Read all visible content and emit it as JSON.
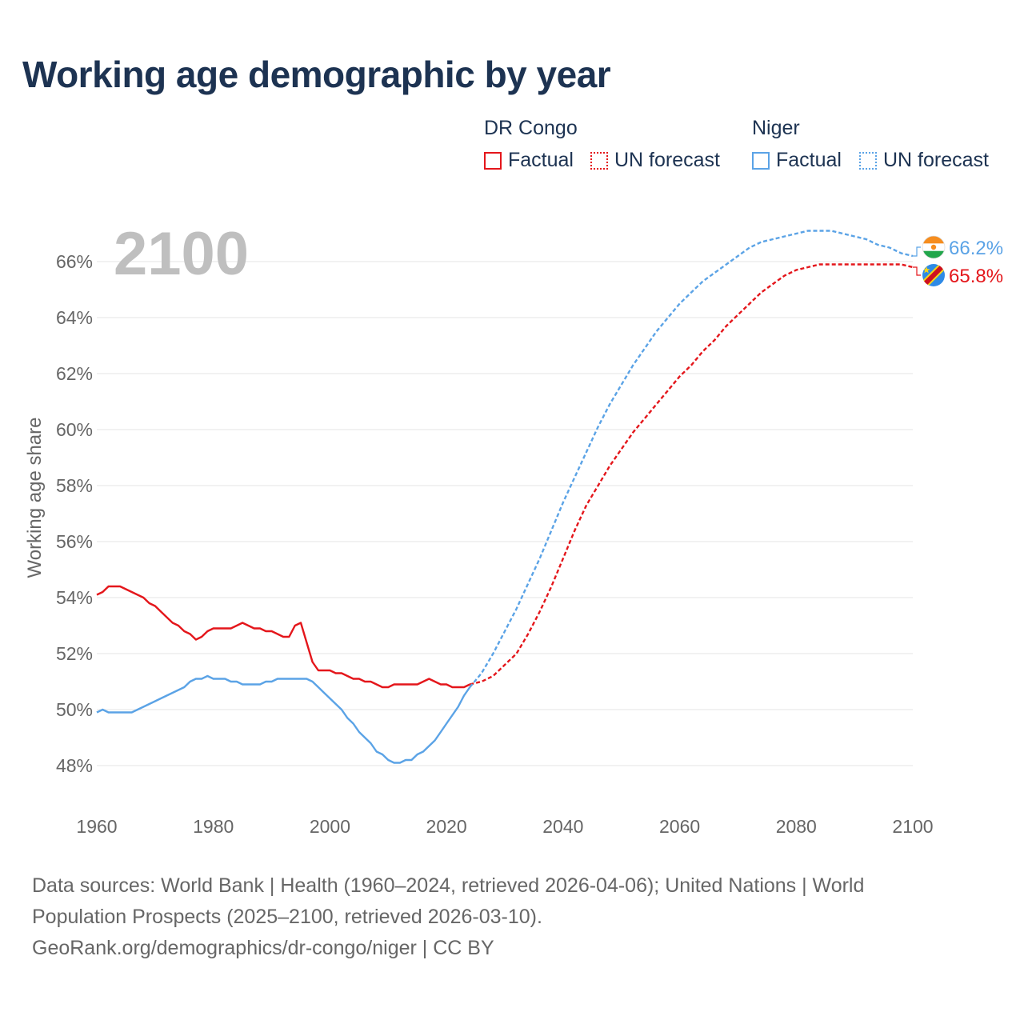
{
  "chart_data": {
    "type": "line",
    "title": "Working age demographic by year",
    "year_display": "2100",
    "ylabel": "Working age share",
    "xlabel": "",
    "xlim": [
      1960,
      2100
    ],
    "ylim": [
      47,
      67
    ],
    "x_ticks": [
      1960,
      1980,
      2000,
      2020,
      2040,
      2060,
      2080,
      2100
    ],
    "y_ticks": [
      48,
      50,
      52,
      54,
      56,
      58,
      60,
      62,
      64,
      66
    ],
    "y_tick_labels": [
      "48%",
      "50%",
      "52%",
      "54%",
      "56%",
      "58%",
      "60%",
      "62%",
      "64%",
      "66%"
    ],
    "grid": true,
    "legend": {
      "groups": [
        {
          "name": "DR Congo",
          "factual": "Factual",
          "forecast": "UN forecast",
          "color": "#e4161b"
        },
        {
          "name": "Niger",
          "factual": "Factual",
          "forecast": "UN forecast",
          "color": "#5ba3e6"
        }
      ]
    },
    "series": [
      {
        "name": "DR Congo",
        "color": "#e4161b",
        "end_label": "65.8%",
        "flag_icon": "dr-congo-flag-icon",
        "factual": [
          [
            1960,
            54.1
          ],
          [
            1961,
            54.2
          ],
          [
            1962,
            54.4
          ],
          [
            1963,
            54.4
          ],
          [
            1964,
            54.4
          ],
          [
            1965,
            54.3
          ],
          [
            1966,
            54.2
          ],
          [
            1967,
            54.1
          ],
          [
            1968,
            54.0
          ],
          [
            1969,
            53.8
          ],
          [
            1970,
            53.7
          ],
          [
            1971,
            53.5
          ],
          [
            1972,
            53.3
          ],
          [
            1973,
            53.1
          ],
          [
            1974,
            53.0
          ],
          [
            1975,
            52.8
          ],
          [
            1976,
            52.7
          ],
          [
            1977,
            52.5
          ],
          [
            1978,
            52.6
          ],
          [
            1979,
            52.8
          ],
          [
            1980,
            52.9
          ],
          [
            1981,
            52.9
          ],
          [
            1982,
            52.9
          ],
          [
            1983,
            52.9
          ],
          [
            1984,
            53.0
          ],
          [
            1985,
            53.1
          ],
          [
            1986,
            53.0
          ],
          [
            1987,
            52.9
          ],
          [
            1988,
            52.9
          ],
          [
            1989,
            52.8
          ],
          [
            1990,
            52.8
          ],
          [
            1991,
            52.7
          ],
          [
            1992,
            52.6
          ],
          [
            1993,
            52.6
          ],
          [
            1994,
            53.0
          ],
          [
            1995,
            53.1
          ],
          [
            1996,
            52.4
          ],
          [
            1997,
            51.7
          ],
          [
            1998,
            51.4
          ],
          [
            1999,
            51.4
          ],
          [
            2000,
            51.4
          ],
          [
            2001,
            51.3
          ],
          [
            2002,
            51.3
          ],
          [
            2003,
            51.2
          ],
          [
            2004,
            51.1
          ],
          [
            2005,
            51.1
          ],
          [
            2006,
            51.0
          ],
          [
            2007,
            51.0
          ],
          [
            2008,
            50.9
          ],
          [
            2009,
            50.8
          ],
          [
            2010,
            50.8
          ],
          [
            2011,
            50.9
          ],
          [
            2012,
            50.9
          ],
          [
            2013,
            50.9
          ],
          [
            2014,
            50.9
          ],
          [
            2015,
            50.9
          ],
          [
            2016,
            51.0
          ],
          [
            2017,
            51.1
          ],
          [
            2018,
            51.0
          ],
          [
            2019,
            50.9
          ],
          [
            2020,
            50.9
          ],
          [
            2021,
            50.8
          ],
          [
            2022,
            50.8
          ],
          [
            2023,
            50.8
          ],
          [
            2024,
            50.9
          ]
        ],
        "forecast": [
          [
            2024,
            50.9
          ],
          [
            2026,
            51.0
          ],
          [
            2028,
            51.2
          ],
          [
            2030,
            51.6
          ],
          [
            2032,
            52.0
          ],
          [
            2034,
            52.7
          ],
          [
            2036,
            53.5
          ],
          [
            2038,
            54.4
          ],
          [
            2040,
            55.4
          ],
          [
            2042,
            56.4
          ],
          [
            2044,
            57.3
          ],
          [
            2046,
            58.0
          ],
          [
            2048,
            58.7
          ],
          [
            2050,
            59.3
          ],
          [
            2052,
            59.9
          ],
          [
            2054,
            60.4
          ],
          [
            2056,
            60.9
          ],
          [
            2058,
            61.4
          ],
          [
            2060,
            61.9
          ],
          [
            2062,
            62.3
          ],
          [
            2064,
            62.8
          ],
          [
            2066,
            63.2
          ],
          [
            2068,
            63.7
          ],
          [
            2070,
            64.1
          ],
          [
            2072,
            64.5
          ],
          [
            2074,
            64.9
          ],
          [
            2076,
            65.2
          ],
          [
            2078,
            65.5
          ],
          [
            2080,
            65.7
          ],
          [
            2082,
            65.8
          ],
          [
            2084,
            65.9
          ],
          [
            2086,
            65.9
          ],
          [
            2088,
            65.9
          ],
          [
            2090,
            65.9
          ],
          [
            2092,
            65.9
          ],
          [
            2094,
            65.9
          ],
          [
            2096,
            65.9
          ],
          [
            2098,
            65.9
          ],
          [
            2100,
            65.8
          ]
        ]
      },
      {
        "name": "Niger",
        "color": "#5ba3e6",
        "end_label": "66.2%",
        "flag_icon": "niger-flag-icon",
        "factual": [
          [
            1960,
            49.9
          ],
          [
            1961,
            50.0
          ],
          [
            1962,
            49.9
          ],
          [
            1963,
            49.9
          ],
          [
            1964,
            49.9
          ],
          [
            1965,
            49.9
          ],
          [
            1966,
            49.9
          ],
          [
            1967,
            50.0
          ],
          [
            1968,
            50.1
          ],
          [
            1969,
            50.2
          ],
          [
            1970,
            50.3
          ],
          [
            1971,
            50.4
          ],
          [
            1972,
            50.5
          ],
          [
            1973,
            50.6
          ],
          [
            1974,
            50.7
          ],
          [
            1975,
            50.8
          ],
          [
            1976,
            51.0
          ],
          [
            1977,
            51.1
          ],
          [
            1978,
            51.1
          ],
          [
            1979,
            51.2
          ],
          [
            1980,
            51.1
          ],
          [
            1981,
            51.1
          ],
          [
            1982,
            51.1
          ],
          [
            1983,
            51.0
          ],
          [
            1984,
            51.0
          ],
          [
            1985,
            50.9
          ],
          [
            1986,
            50.9
          ],
          [
            1987,
            50.9
          ],
          [
            1988,
            50.9
          ],
          [
            1989,
            51.0
          ],
          [
            1990,
            51.0
          ],
          [
            1991,
            51.1
          ],
          [
            1992,
            51.1
          ],
          [
            1993,
            51.1
          ],
          [
            1994,
            51.1
          ],
          [
            1995,
            51.1
          ],
          [
            1996,
            51.1
          ],
          [
            1997,
            51.0
          ],
          [
            1998,
            50.8
          ],
          [
            1999,
            50.6
          ],
          [
            2000,
            50.4
          ],
          [
            2001,
            50.2
          ],
          [
            2002,
            50.0
          ],
          [
            2003,
            49.7
          ],
          [
            2004,
            49.5
          ],
          [
            2005,
            49.2
          ],
          [
            2006,
            49.0
          ],
          [
            2007,
            48.8
          ],
          [
            2008,
            48.5
          ],
          [
            2009,
            48.4
          ],
          [
            2010,
            48.2
          ],
          [
            2011,
            48.1
          ],
          [
            2012,
            48.1
          ],
          [
            2013,
            48.2
          ],
          [
            2014,
            48.2
          ],
          [
            2015,
            48.4
          ],
          [
            2016,
            48.5
          ],
          [
            2017,
            48.7
          ],
          [
            2018,
            48.9
          ],
          [
            2019,
            49.2
          ],
          [
            2020,
            49.5
          ],
          [
            2021,
            49.8
          ],
          [
            2022,
            50.1
          ],
          [
            2023,
            50.5
          ],
          [
            2024,
            50.8
          ]
        ],
        "forecast": [
          [
            2024,
            50.8
          ],
          [
            2026,
            51.3
          ],
          [
            2028,
            52.0
          ],
          [
            2030,
            52.8
          ],
          [
            2032,
            53.6
          ],
          [
            2034,
            54.5
          ],
          [
            2036,
            55.4
          ],
          [
            2038,
            56.4
          ],
          [
            2040,
            57.4
          ],
          [
            2042,
            58.3
          ],
          [
            2044,
            59.2
          ],
          [
            2046,
            60.1
          ],
          [
            2048,
            60.9
          ],
          [
            2050,
            61.6
          ],
          [
            2052,
            62.3
          ],
          [
            2054,
            62.9
          ],
          [
            2056,
            63.5
          ],
          [
            2058,
            64.0
          ],
          [
            2060,
            64.5
          ],
          [
            2062,
            64.9
          ],
          [
            2064,
            65.3
          ],
          [
            2066,
            65.6
          ],
          [
            2068,
            65.9
          ],
          [
            2070,
            66.2
          ],
          [
            2072,
            66.5
          ],
          [
            2074,
            66.7
          ],
          [
            2076,
            66.8
          ],
          [
            2078,
            66.9
          ],
          [
            2080,
            67.0
          ],
          [
            2082,
            67.1
          ],
          [
            2084,
            67.1
          ],
          [
            2086,
            67.1
          ],
          [
            2088,
            67.0
          ],
          [
            2090,
            66.9
          ],
          [
            2092,
            66.8
          ],
          [
            2094,
            66.6
          ],
          [
            2096,
            66.5
          ],
          [
            2098,
            66.3
          ],
          [
            2100,
            66.2
          ]
        ]
      }
    ]
  },
  "footer": {
    "sources": "Data sources: World Bank | Health (1960–2024, retrieved 2026-04-06); United Nations | World Population Prospects (2025–2100, retrieved 2026-03-10).",
    "credit": "GeoRank.org/demographics/dr-congo/niger | CC BY"
  }
}
